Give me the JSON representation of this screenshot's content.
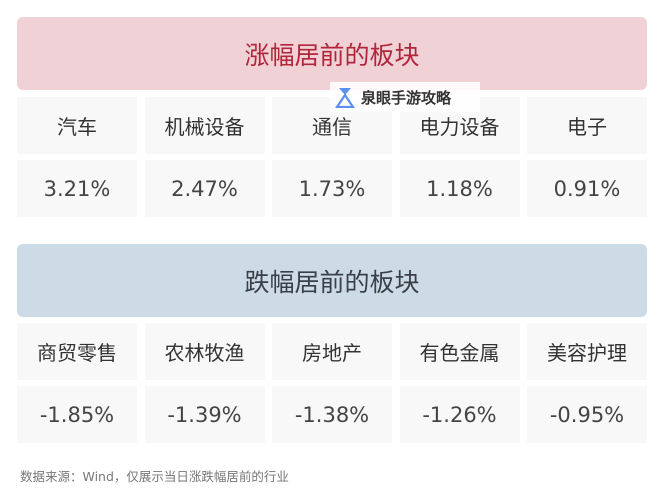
{
  "top": {
    "title": "涨幅居前的板块",
    "sectors": [
      {
        "name": "汽车",
        "change": "3.21%"
      },
      {
        "name": "机械设备",
        "change": "2.47%"
      },
      {
        "name": "通信",
        "change": "1.73%"
      },
      {
        "name": "电力设备",
        "change": "1.18%"
      },
      {
        "name": "电子",
        "change": "0.91%"
      }
    ]
  },
  "bottom": {
    "title": "跌幅居前的板块",
    "sectors": [
      {
        "name": "商贸零售",
        "change": "-1.85%"
      },
      {
        "name": "农林牧渔",
        "change": "-1.39%"
      },
      {
        "name": "房地产",
        "change": "-1.38%"
      },
      {
        "name": "有色金属",
        "change": "-1.26%"
      },
      {
        "name": "美容护理",
        "change": "-0.95%"
      }
    ]
  },
  "footnote": "数据来源：Wind，仅展示当日涨跌幅居前的行业",
  "watermark": "泉眼手游攻略",
  "colors": {
    "gain_header": "#f0d2d6",
    "gain_text": "#b0253a",
    "loss_header": "#cddbe7"
  }
}
